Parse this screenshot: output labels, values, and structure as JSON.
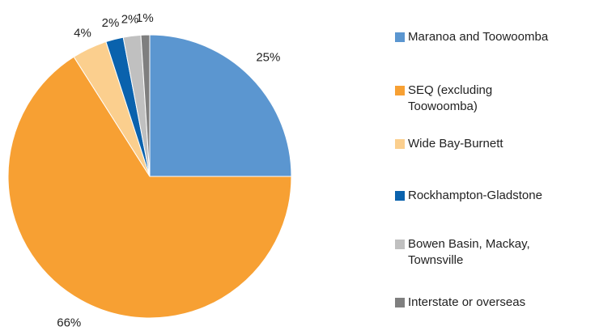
{
  "chart_data": {
    "type": "pie",
    "categories": [
      "Maranoa and Toowoomba",
      "SEQ (excluding Toowoomba)",
      "Wide Bay-Burnett",
      "Rockhampton-Gladstone",
      "Bowen Basin, Mackay, Townsville",
      "Interstate or overseas"
    ],
    "values": [
      25,
      66,
      4,
      2,
      2,
      1
    ],
    "value_labels": [
      "25%",
      "66%",
      "4%",
      "2%",
      "2%",
      "1%"
    ],
    "colors": [
      "#5b96d0",
      "#f7a033",
      "#fbcf8e",
      "#0a62ad",
      "#c0c0c0",
      "#7f7f7f"
    ],
    "legend": "right"
  }
}
